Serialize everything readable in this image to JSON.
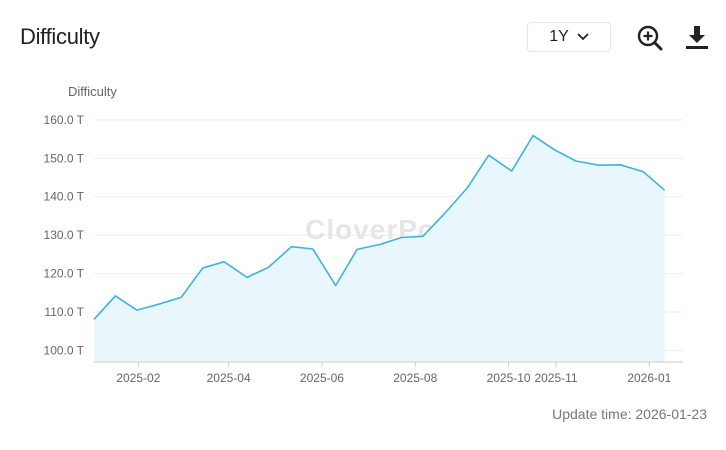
{
  "header": {
    "title": "Difficulty",
    "range_value": "1Y"
  },
  "icons": {
    "range": "chevron-down-icon",
    "zoom": "zoom-in-icon",
    "download": "download-icon"
  },
  "footer": {
    "update_time": "Update time: 2026-01-23"
  },
  "watermark": "CloverPool",
  "colors": {
    "line": "#3db3e0",
    "area": "#e9f6fc",
    "grid": "#eeeeee",
    "axis_text": "#666666"
  },
  "chart_data": {
    "type": "area",
    "ylabel": "Difficulty",
    "ylim": [
      97,
      161
    ],
    "grid": true,
    "yticks": [
      {
        "value": 100,
        "label": "100.0 T"
      },
      {
        "value": 110,
        "label": "110.0 T"
      },
      {
        "value": 120,
        "label": "120.0 T"
      },
      {
        "value": 130,
        "label": "130.0 T"
      },
      {
        "value": 140,
        "label": "140.0 T"
      },
      {
        "value": 150,
        "label": "150.0 T"
      },
      {
        "value": 160,
        "label": "160.0 T"
      }
    ],
    "xlim": [
      "2025-01-03",
      "2026-01-23"
    ],
    "xticks": [
      {
        "date": "2025-02-01",
        "label": "2025-02"
      },
      {
        "date": "2025-04-01",
        "label": "2025-04"
      },
      {
        "date": "2025-06-01",
        "label": "2025-06"
      },
      {
        "date": "2025-08-01",
        "label": "2025-08"
      },
      {
        "date": "2025-10-01",
        "label": "2025-10"
      },
      {
        "date": "2025-11-01",
        "label": "2025-11"
      },
      {
        "date": "2026-01-01",
        "label": "2026-01"
      }
    ],
    "series": [
      {
        "points": [
          {
            "x": "2025-01-03",
            "y": 108.1
          },
          {
            "x": "2025-01-17",
            "y": 114.2
          },
          {
            "x": "2025-01-31",
            "y": 110.5
          },
          {
            "x": "2025-02-14",
            "y": 112.0
          },
          {
            "x": "2025-03-01",
            "y": 113.8
          },
          {
            "x": "2025-03-15",
            "y": 121.4
          },
          {
            "x": "2025-03-29",
            "y": 123.1
          },
          {
            "x": "2025-04-13",
            "y": 119.0
          },
          {
            "x": "2025-04-27",
            "y": 121.6
          },
          {
            "x": "2025-05-12",
            "y": 127.0
          },
          {
            "x": "2025-05-26",
            "y": 126.4
          },
          {
            "x": "2025-06-10",
            "y": 116.9
          },
          {
            "x": "2025-06-24",
            "y": 126.3
          },
          {
            "x": "2025-07-09",
            "y": 127.6
          },
          {
            "x": "2025-07-23",
            "y": 129.4
          },
          {
            "x": "2025-08-06",
            "y": 129.7
          },
          {
            "x": "2025-08-21",
            "y": 136.0
          },
          {
            "x": "2025-09-04",
            "y": 142.3
          },
          {
            "x": "2025-09-18",
            "y": 150.8
          },
          {
            "x": "2025-10-03",
            "y": 146.7
          },
          {
            "x": "2025-10-17",
            "y": 155.9
          },
          {
            "x": "2025-10-31",
            "y": 152.2
          },
          {
            "x": "2025-11-14",
            "y": 149.3
          },
          {
            "x": "2025-11-29",
            "y": 148.2
          },
          {
            "x": "2025-12-13",
            "y": 148.3
          },
          {
            "x": "2025-12-28",
            "y": 146.5
          },
          {
            "x": "2026-01-11",
            "y": 141.7
          }
        ]
      }
    ]
  }
}
